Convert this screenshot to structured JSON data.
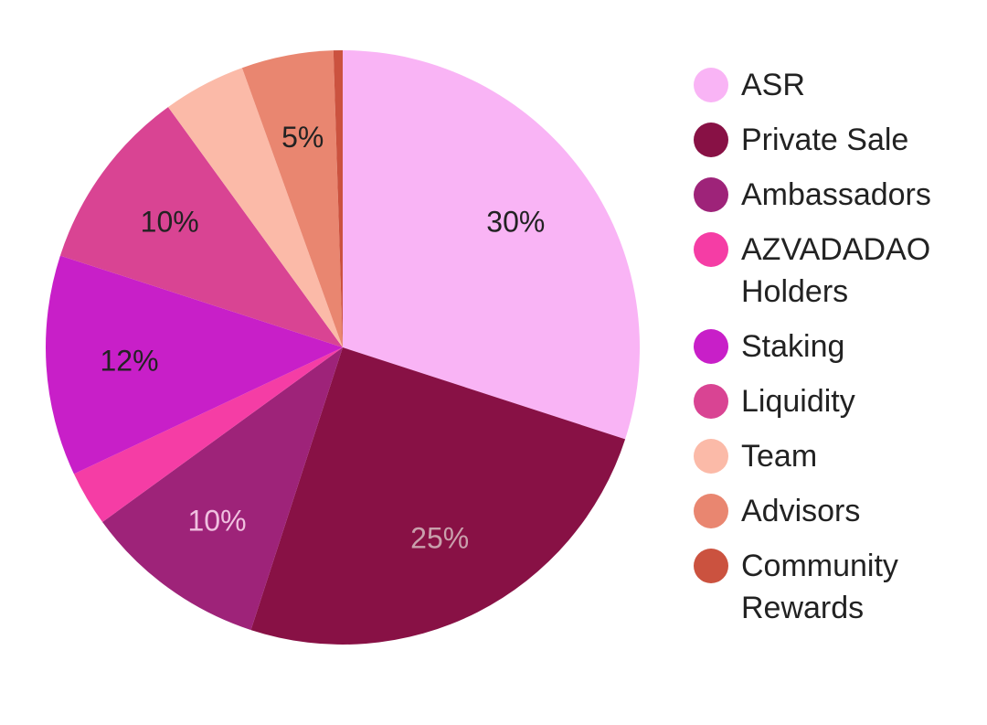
{
  "chart_data": {
    "type": "pie",
    "title": "",
    "categories": [
      "ASR",
      "Private Sale",
      "Ambassadors",
      "AZVADADAO Holders",
      "Staking",
      "Liquidity",
      "Team",
      "Advisors",
      "Community Rewards"
    ],
    "values": [
      30,
      25,
      10,
      3,
      12,
      10,
      4.5,
      5,
      0.5
    ],
    "data_labels": [
      "30%",
      "25%",
      "10%",
      "",
      "12%",
      "10%",
      "",
      "5%",
      ""
    ],
    "colors": [
      "#f9b4f5",
      "#881145",
      "#9e2379",
      "#f53da5",
      "#c81fc8",
      "#d94493",
      "#fbbaa8",
      "#e98670",
      "#cb523f"
    ],
    "label_colors": [
      "#222222",
      "#c9a0ac",
      "#f0c0e0",
      "#222222",
      "#222222",
      "#222222",
      "#222222",
      "#222222",
      "#222222"
    ],
    "legend": {
      "position": "right",
      "items": [
        {
          "lines": [
            "ASR"
          ]
        },
        {
          "lines": [
            "Private Sale"
          ]
        },
        {
          "lines": [
            "Ambassadors"
          ]
        },
        {
          "lines": [
            "AZVADADAO",
            "Holders"
          ]
        },
        {
          "lines": [
            "Staking"
          ]
        },
        {
          "lines": [
            "Liquidity"
          ]
        },
        {
          "lines": [
            "Team"
          ]
        },
        {
          "lines": [
            "Advisors"
          ]
        },
        {
          "lines": [
            "Community",
            "Rewards"
          ]
        }
      ]
    }
  }
}
